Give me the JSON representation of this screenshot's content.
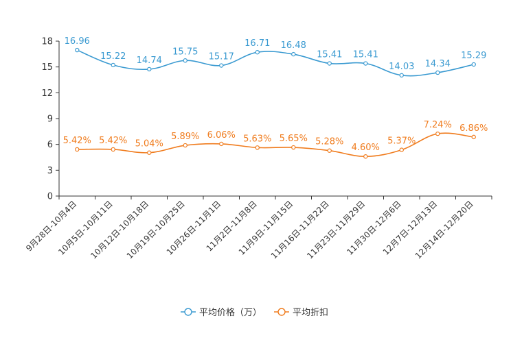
{
  "chart_data": {
    "type": "line",
    "categories": [
      "9月28日-10月4日",
      "10月5日-10月11日",
      "10月12日-10月18日",
      "10月19日-10月25日",
      "10月26日-11月1日",
      "11月2日-11月8日",
      "11月9日-11月15日",
      "11月16日-11月22日",
      "11月23日-11月29日",
      "11月30日-12月6日",
      "12月7日-12月13日",
      "12月14日-12月20日"
    ],
    "series": [
      {
        "name": "平均价格（万）",
        "color": "#3a9ad1",
        "values": [
          16.96,
          15.22,
          14.74,
          15.75,
          15.17,
          16.71,
          16.48,
          15.41,
          15.41,
          14.03,
          14.34,
          15.29
        ],
        "labels": [
          "16.96",
          "15.22",
          "14.74",
          "15.75",
          "15.17",
          "16.71",
          "16.48",
          "15.41",
          "15.41",
          "14.03",
          "14.34",
          "15.29"
        ]
      },
      {
        "name": "平均折扣",
        "color": "#f07c1e",
        "values": [
          5.42,
          5.42,
          5.04,
          5.89,
          6.06,
          5.63,
          5.65,
          5.28,
          4.6,
          5.37,
          7.24,
          6.86
        ],
        "labels": [
          "5.42%",
          "5.42%",
          "5.04%",
          "5.89%",
          "6.06%",
          "5.63%",
          "5.65%",
          "5.28%",
          "4.60%",
          "5.37%",
          "7.24%",
          "6.86%"
        ]
      }
    ],
    "yticks": [
      "0",
      "3",
      "6",
      "9",
      "12",
      "15",
      "18"
    ],
    "ylim": [
      0,
      18
    ],
    "grid": false,
    "legend_position": "bottom-center",
    "title": "",
    "xlabel": "",
    "ylabel": ""
  }
}
